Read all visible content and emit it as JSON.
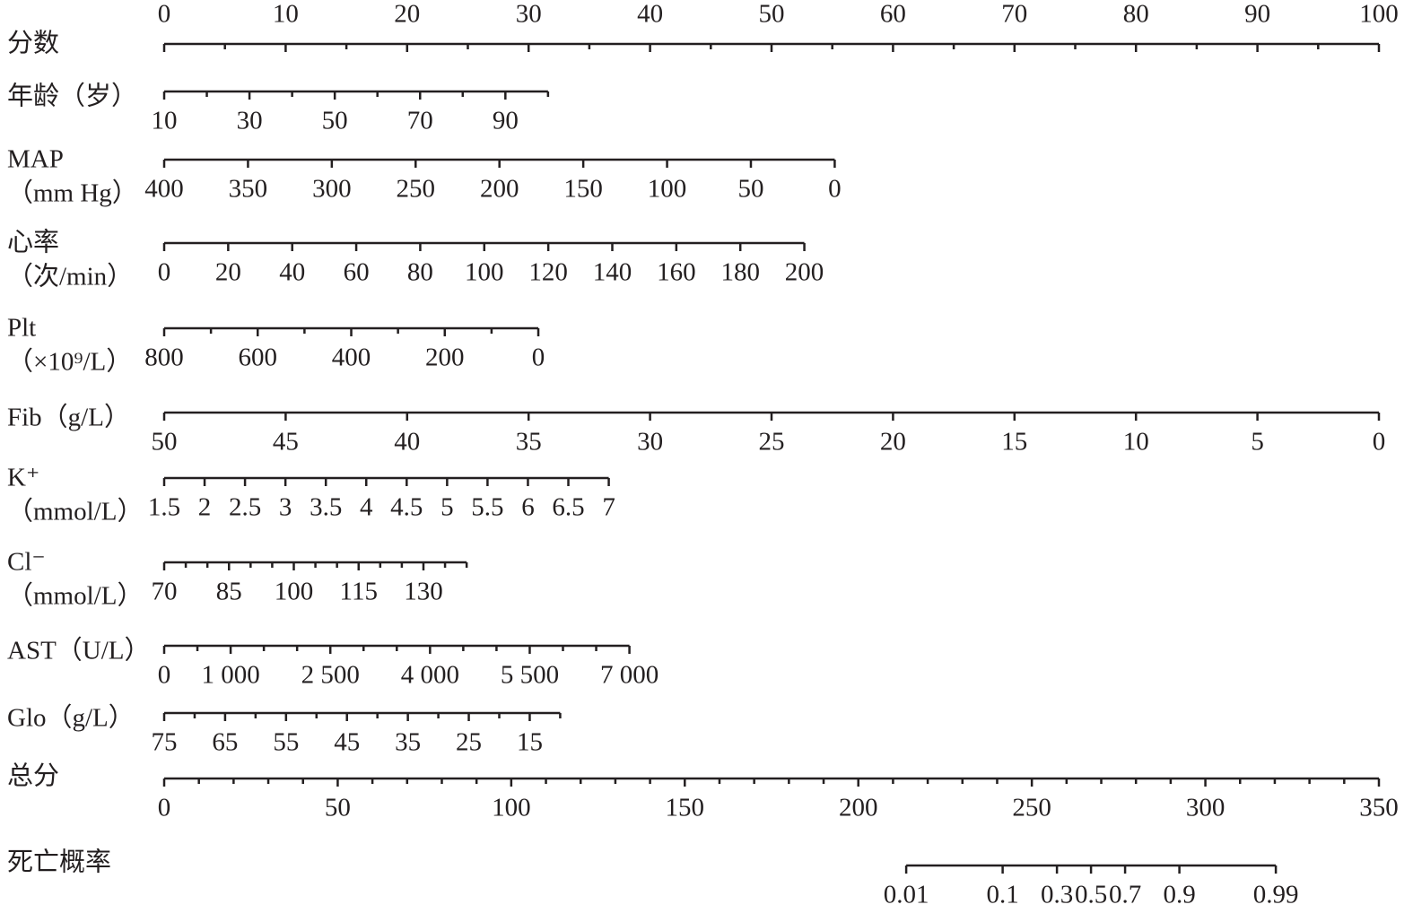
{
  "chart_data": {
    "type": "nomogram",
    "points_axis": {
      "label": "分数",
      "lim": [
        0,
        100
      ],
      "ticks": [
        0,
        10,
        20,
        30,
        40,
        50,
        60,
        70,
        80,
        90,
        100
      ],
      "minor_ticks": [
        5,
        15,
        25,
        35,
        45,
        55,
        65,
        75,
        85,
        95
      ]
    },
    "rows": [
      {
        "label": [
          "年龄（岁）"
        ],
        "lim": [
          10,
          100
        ],
        "points": [
          0,
          31.6
        ],
        "ticks": [
          10,
          30,
          50,
          70,
          90
        ],
        "minor_ticks": [
          20,
          40,
          60,
          80,
          100
        ]
      },
      {
        "label": [
          "MAP",
          "（mm Hg）"
        ],
        "lim": [
          400,
          0
        ],
        "points": [
          0,
          55.2
        ],
        "ticks": [
          400,
          350,
          300,
          250,
          200,
          150,
          100,
          50,
          0
        ]
      },
      {
        "label": [
          "心率",
          "（次/min）"
        ],
        "lim": [
          0,
          200
        ],
        "points": [
          0,
          52.7
        ],
        "ticks": [
          0,
          20,
          40,
          60,
          80,
          100,
          120,
          140,
          160,
          180,
          200
        ]
      },
      {
        "label": [
          "Plt",
          "（×10⁹/L）"
        ],
        "lim": [
          800,
          0
        ],
        "points": [
          0,
          30.8
        ],
        "ticks": [
          800,
          600,
          400,
          200,
          0
        ],
        "minor_ticks": [
          700,
          500,
          300,
          100
        ]
      },
      {
        "label": [
          "Fib（g/L）"
        ],
        "lim": [
          50,
          0
        ],
        "points": [
          0,
          100
        ],
        "ticks": [
          50,
          45,
          40,
          35,
          30,
          25,
          20,
          15,
          10,
          5,
          0
        ]
      },
      {
        "label": [
          "K⁺",
          "（mmol/L）"
        ],
        "lim": [
          1.5,
          7
        ],
        "points": [
          0,
          36.6
        ],
        "ticks": [
          1.5,
          2,
          2.5,
          3,
          3.5,
          4,
          4.5,
          5,
          5.5,
          6,
          6.5,
          7
        ]
      },
      {
        "label": [
          "Cl⁻",
          "（mmol/L）"
        ],
        "lim": [
          70,
          140
        ],
        "points": [
          0,
          24.9
        ],
        "ticks": [
          70,
          85,
          100,
          115,
          130
        ],
        "minor_ticks": [
          75,
          80,
          90,
          95,
          105,
          110,
          120,
          125,
          135,
          140
        ]
      },
      {
        "label": [
          "AST（U/L）"
        ],
        "lim": [
          0,
          7000
        ],
        "points": [
          0,
          38.3
        ],
        "ticks": [
          0,
          {
            "value": 1000,
            "label": "1 000"
          },
          {
            "value": 2500,
            "label": "2 500"
          },
          {
            "value": 4000,
            "label": "4 000"
          },
          {
            "value": 5500,
            "label": "5 500"
          },
          {
            "value": 7000,
            "label": "7 000"
          }
        ],
        "minor_ticks": [
          500,
          1500,
          2000,
          3000,
          3500,
          4500,
          5000,
          6000,
          6500
        ]
      },
      {
        "label": [
          "Glo（g/L）"
        ],
        "lim": [
          75,
          10
        ],
        "points": [
          0,
          32.6
        ],
        "ticks": [
          75,
          65,
          55,
          45,
          35,
          25,
          15
        ],
        "minor_ticks": [
          70,
          60,
          50,
          40,
          30,
          20,
          10
        ]
      }
    ],
    "total_axis": {
      "label": "总分",
      "lim": [
        0,
        350
      ],
      "ticks": [
        0,
        50,
        100,
        150,
        200,
        250,
        300,
        350
      ],
      "minor_ticks": [
        10,
        20,
        30,
        40,
        60,
        70,
        80,
        90,
        110,
        120,
        130,
        140,
        160,
        170,
        180,
        190,
        210,
        220,
        230,
        240,
        260,
        270,
        280,
        290,
        310,
        320,
        330,
        340
      ]
    },
    "outcome": {
      "label": "死亡概率",
      "scale": "logit",
      "lim": [
        0.01,
        0.99
      ],
      "total": [
        213.8,
        320.3
      ],
      "ticks": [
        0.01,
        0.1,
        0.3,
        0.5,
        0.7,
        0.9,
        0.99
      ]
    }
  }
}
